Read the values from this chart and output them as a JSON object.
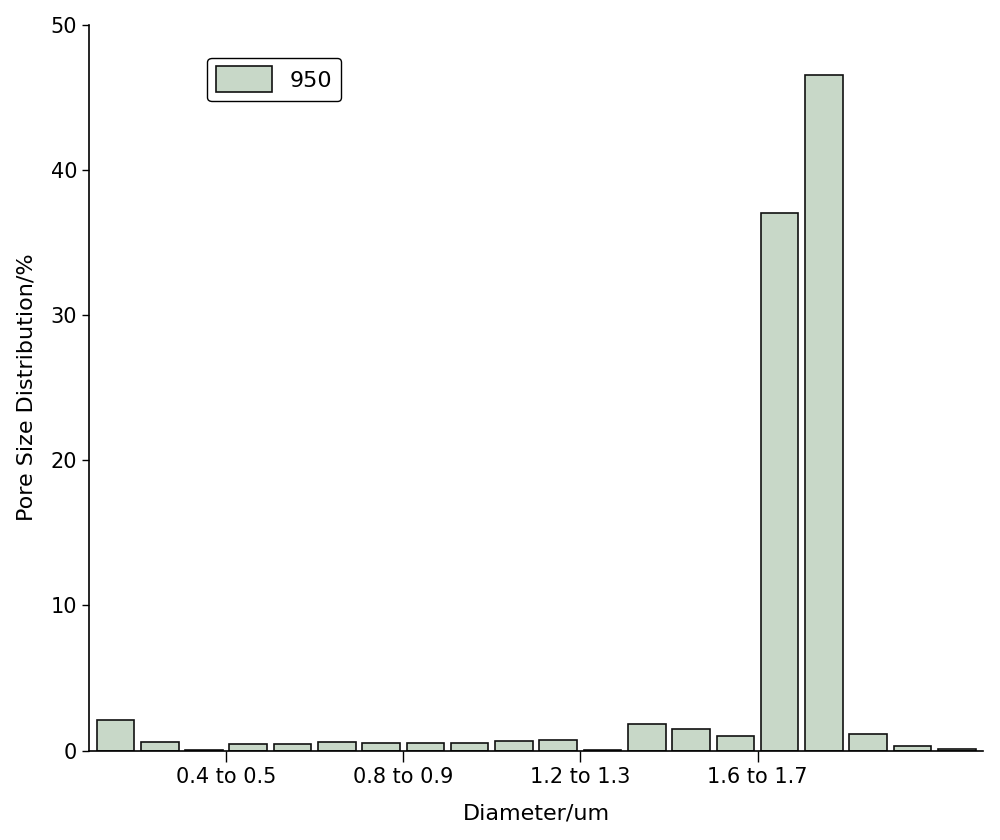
{
  "values": [
    2.1,
    0.6,
    0.07,
    0.45,
    0.45,
    0.6,
    0.5,
    0.5,
    0.5,
    0.7,
    0.75,
    0.08,
    1.85,
    1.5,
    1.0,
    37.0,
    46.5,
    1.15,
    0.35,
    0.12
  ],
  "bar_color": "#c8d8c8",
  "bar_edge_color": "#111111",
  "legend_label": "950",
  "xlabel": "Diameter/um",
  "ylabel": "Pore Size Distribution/%",
  "ylim": [
    0,
    50
  ],
  "yticks": [
    0,
    10,
    20,
    30,
    40,
    50
  ],
  "axis_fontsize": 16,
  "tick_fontsize": 15,
  "legend_fontsize": 16,
  "figsize": [
    10.0,
    8.4
  ],
  "dpi": 100,
  "n_bars": 20,
  "bar_width": 0.85,
  "xlim_left": -0.6,
  "xlim_right": 19.6,
  "xtick_positions": [
    2.5,
    6.5,
    10.5,
    14.5
  ],
  "xtick_labels": [
    "0.4 to 0.5",
    "0.8 to 0.9",
    "1.2 to 1.3",
    "1.6 to 1.7"
  ],
  "bottom_spine_tick_positions": [
    2,
    4,
    6,
    8,
    10,
    12,
    14,
    16,
    18
  ]
}
